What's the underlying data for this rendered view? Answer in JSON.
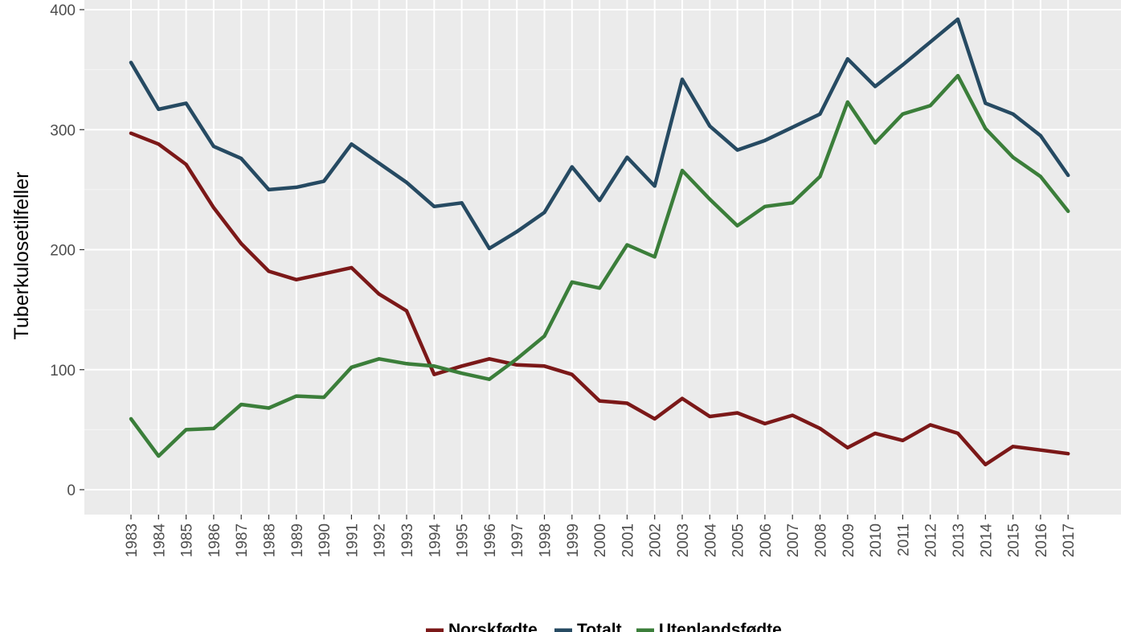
{
  "chart_data": {
    "type": "line",
    "title": "",
    "xlabel": "",
    "ylabel": "Tuberkulosetilfeller",
    "ylim": [
      0,
      400
    ],
    "yticks": [
      0,
      100,
      200,
      300,
      400
    ],
    "grid": true,
    "legend_position": "bottom",
    "x": [
      "1983",
      "1984",
      "1985",
      "1986",
      "1987",
      "1988",
      "1989",
      "1990",
      "1991",
      "1992",
      "1993",
      "1994",
      "1995",
      "1996",
      "1997",
      "1998",
      "1999",
      "2000",
      "2001",
      "2002",
      "2003",
      "2004",
      "2005",
      "2006",
      "2007",
      "2008",
      "2009",
      "2010",
      "2011",
      "2012",
      "2013",
      "2014",
      "2015",
      "2016",
      "2017"
    ],
    "series": [
      {
        "name": "Norskfødte",
        "color": "#7b1818",
        "values": [
          297,
          288,
          271,
          235,
          205,
          182,
          175,
          180,
          185,
          163,
          149,
          96,
          103,
          109,
          104,
          103,
          96,
          74,
          72,
          59,
          76,
          61,
          64,
          55,
          62,
          51,
          35,
          47,
          41,
          54,
          47,
          21,
          36,
          33,
          30
        ]
      },
      {
        "name": "Totalt",
        "color": "#264a62",
        "values": [
          356,
          317,
          322,
          286,
          276,
          250,
          252,
          257,
          288,
          272,
          256,
          236,
          239,
          201,
          215,
          231,
          269,
          241,
          277,
          253,
          342,
          303,
          283,
          291,
          302,
          313,
          359,
          336,
          354,
          373,
          392,
          322,
          313,
          295,
          262
        ]
      },
      {
        "name": "Utenlandsfødte",
        "color": "#3b7e3a",
        "values": [
          59,
          28,
          50,
          51,
          71,
          68,
          78,
          77,
          102,
          109,
          105,
          103,
          97,
          92,
          109,
          128,
          173,
          168,
          204,
          194,
          266,
          242,
          220,
          236,
          239,
          261,
          323,
          289,
          313,
          320,
          345,
          301,
          277,
          261,
          232
        ]
      }
    ]
  }
}
